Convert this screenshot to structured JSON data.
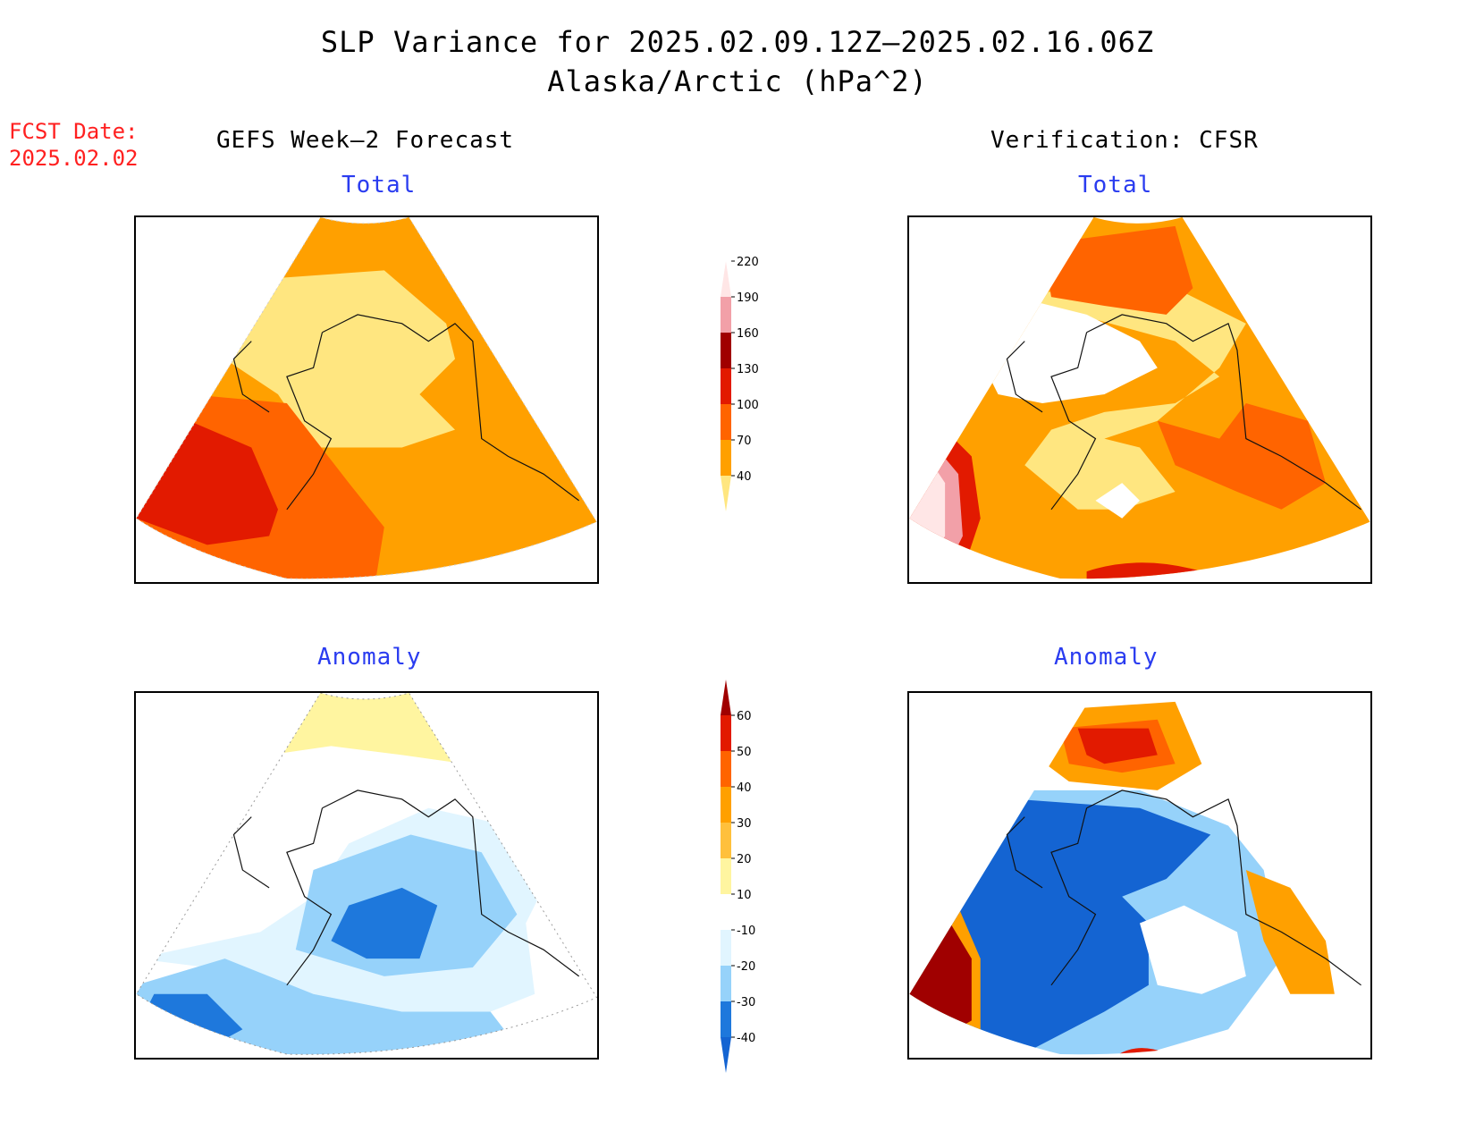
{
  "title": {
    "line1": "SLP Variance for 2025.02.09.12Z–2025.02.16.06Z",
    "line2": "Alaska/Arctic (hPa^2)"
  },
  "forecast_date": {
    "label": "FCST Date:",
    "value": "2025.02.02"
  },
  "columns": {
    "left": "GEFS Week–2 Forecast",
    "right": "Verification: CFSR"
  },
  "panels": {
    "top_left": "Total",
    "top_right": "Total",
    "bottom_left": "Anomaly",
    "bottom_right": "Anomaly"
  },
  "colorbars": {
    "total": {
      "levels": [
        "40",
        "70",
        "100",
        "130",
        "160",
        "190",
        "220"
      ],
      "colors": [
        "#ffe680",
        "#ffa000",
        "#ff6400",
        "#e21a00",
        "#a00000",
        "#f2a0a8",
        "#ffe6e6"
      ]
    },
    "anomaly": {
      "levels": [
        "-40",
        "-30",
        "-20",
        "-10",
        "10",
        "20",
        "30",
        "40",
        "50",
        "60"
      ],
      "colors": [
        "#1464d2",
        "#1e78dc",
        "#96d2fa",
        "#e1f5ff",
        "#ffffff",
        "#fff5a0",
        "#ffc03c",
        "#ffa000",
        "#ff6400",
        "#e21a00",
        "#a00000"
      ]
    }
  }
}
